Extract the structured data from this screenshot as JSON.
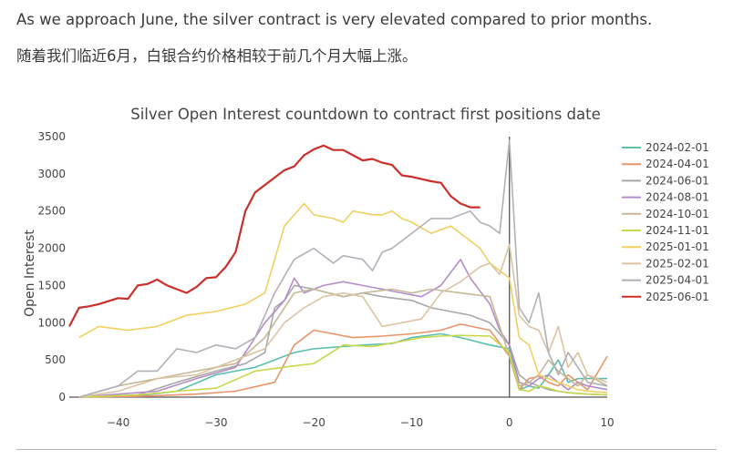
{
  "paragraphs": {
    "en": "As we approach June, the silver contract is very elevated compared to prior months.",
    "zh": "随着我们临近6月，白银合约价格相较于前几个月大幅上涨。"
  },
  "chart_data": {
    "type": "line",
    "title": "Silver Open Interest countdown to contract first positions date",
    "xlabel": "",
    "ylabel": "Open Interest",
    "xlim": [
      -45,
      10
    ],
    "ylim": [
      0,
      3500
    ],
    "xticks": [
      -40,
      -30,
      -20,
      -10,
      0,
      10
    ],
    "yticks": [
      0,
      500,
      1000,
      1500,
      2000,
      2500,
      3000,
      3500
    ],
    "grid": false,
    "legend_position": "right",
    "series": [
      {
        "name": "2024-02-01",
        "color": "#5bbfb0",
        "x": [
          -44,
          -38,
          -34,
          -30,
          -26,
          -22,
          -20,
          -15,
          -12,
          -10,
          -7,
          -5,
          -2,
          0,
          1,
          2,
          3,
          4,
          5,
          6,
          7,
          8,
          10
        ],
        "y": [
          0,
          20,
          80,
          300,
          400,
          600,
          650,
          700,
          720,
          800,
          850,
          800,
          700,
          650,
          100,
          150,
          120,
          300,
          500,
          200,
          250,
          250,
          250
        ]
      },
      {
        "name": "2024-04-01",
        "color": "#e8956a",
        "x": [
          -44,
          -38,
          -32,
          -28,
          -24,
          -22,
          -20,
          -16,
          -13,
          -10,
          -7,
          -5,
          -2,
          0,
          1,
          2,
          3,
          4,
          5,
          6,
          7,
          8,
          10
        ],
        "y": [
          0,
          10,
          40,
          80,
          200,
          700,
          900,
          800,
          820,
          850,
          900,
          980,
          900,
          550,
          100,
          250,
          280,
          200,
          150,
          300,
          200,
          100,
          550
        ]
      },
      {
        "name": "2024-06-01",
        "color": "#a8a8a8",
        "x": [
          -44,
          -38,
          -34,
          -30,
          -27,
          -25,
          -24,
          -23,
          -22,
          -20,
          -17,
          -15,
          -13,
          -10,
          -8,
          -6,
          -4,
          -2,
          0,
          1,
          2,
          3,
          4,
          5,
          6,
          7,
          8,
          10
        ],
        "y": [
          0,
          30,
          200,
          350,
          450,
          600,
          1200,
          1300,
          1500,
          1450,
          1350,
          1400,
          1350,
          1300,
          1200,
          1150,
          1100,
          1000,
          700,
          300,
          200,
          150,
          100,
          80,
          60,
          50,
          40,
          30
        ]
      },
      {
        "name": "2024-08-01",
        "color": "#b48cc8",
        "x": [
          -44,
          -40,
          -36,
          -32,
          -28,
          -25,
          -23,
          -22,
          -21,
          -19,
          -17,
          -15,
          -13,
          -11,
          -9,
          -7,
          -5,
          -4,
          -2,
          -1,
          0,
          1,
          2,
          3,
          4,
          5,
          6,
          7,
          8,
          10
        ],
        "y": [
          0,
          40,
          80,
          250,
          400,
          1000,
          1300,
          1600,
          1400,
          1500,
          1550,
          1500,
          1450,
          1400,
          1350,
          1500,
          1850,
          1600,
          1250,
          900,
          700,
          200,
          150,
          250,
          300,
          200,
          100,
          200,
          150,
          100
        ]
      },
      {
        "name": "2024-10-01",
        "color": "#c4b896",
        "x": [
          -44,
          -40,
          -36,
          -32,
          -28,
          -25,
          -22,
          -20,
          -17,
          -15,
          -12,
          -10,
          -8,
          -5,
          -2,
          0,
          1,
          2,
          3,
          4,
          5,
          6,
          7,
          8,
          10
        ],
        "y": [
          0,
          150,
          250,
          350,
          450,
          800,
          1400,
          1450,
          1350,
          1400,
          1450,
          1400,
          1450,
          1400,
          1350,
          550,
          150,
          200,
          300,
          500,
          350,
          250,
          150,
          300,
          150
        ]
      },
      {
        "name": "2024-11-01",
        "color": "#c8d84a",
        "x": [
          -44,
          -38,
          -34,
          -30,
          -26,
          -22,
          -20,
          -17,
          -14,
          -11,
          -9,
          -7,
          -5,
          -2,
          0,
          1,
          2,
          3,
          4,
          5,
          6,
          7,
          8,
          10
        ],
        "y": [
          0,
          30,
          80,
          120,
          350,
          420,
          450,
          700,
          680,
          750,
          800,
          820,
          830,
          820,
          600,
          100,
          80,
          150,
          120,
          80,
          60,
          50,
          40,
          30
        ]
      },
      {
        "name": "2025-01-01",
        "color": "#f0d060",
        "x": [
          -44,
          -42,
          -39,
          -36,
          -33,
          -30,
          -27,
          -25,
          -23,
          -21,
          -20,
          -18,
          -17,
          -16,
          -14,
          -13,
          -12,
          -11,
          -10,
          -8,
          -6,
          -5,
          -4,
          -3,
          -2,
          -1,
          0,
          1,
          2,
          3,
          4,
          5,
          6,
          7,
          8,
          10
        ],
        "y": [
          800,
          950,
          900,
          950,
          1100,
          1150,
          1250,
          1400,
          2300,
          2600,
          2450,
          2400,
          2350,
          2500,
          2450,
          2450,
          2500,
          2400,
          2350,
          2200,
          2300,
          2200,
          2100,
          2000,
          1800,
          1700,
          1600,
          800,
          700,
          300,
          250,
          200,
          150,
          100,
          80,
          60
        ]
      },
      {
        "name": "2025-02-01",
        "color": "#dcc3a0",
        "x": [
          -44,
          -40,
          -36,
          -32,
          -28,
          -25,
          -23,
          -21,
          -19,
          -17,
          -15,
          -13,
          -11,
          -9,
          -7,
          -5,
          -3,
          -2,
          -1,
          0,
          1,
          2,
          3,
          4,
          5,
          6,
          7,
          8,
          10
        ],
        "y": [
          0,
          80,
          250,
          300,
          500,
          650,
          1000,
          1200,
          1350,
          1400,
          1350,
          950,
          1000,
          1050,
          1400,
          1550,
          1750,
          1800,
          1650,
          2050,
          1100,
          950,
          900,
          600,
          950,
          400,
          600,
          300,
          200
        ]
      },
      {
        "name": "2025-04-01",
        "color": "#b0b0b8",
        "x": [
          -44,
          -40,
          -38,
          -36,
          -34,
          -32,
          -30,
          -28,
          -26,
          -24,
          -22,
          -20,
          -18,
          -17,
          -15,
          -14,
          -13,
          -12,
          -10,
          -8,
          -6,
          -4,
          -3,
          -2,
          -1,
          0,
          1,
          2,
          3,
          4,
          5,
          6,
          7,
          8,
          10
        ],
        "y": [
          0,
          150,
          350,
          350,
          650,
          600,
          700,
          650,
          800,
          1400,
          1850,
          2000,
          1800,
          1900,
          1850,
          1700,
          1950,
          2000,
          2200,
          2400,
          2400,
          2500,
          2350,
          2300,
          2200,
          3450,
          1200,
          1000,
          1400,
          600,
          300,
          600,
          400,
          200,
          150
        ]
      },
      {
        "name": "2025-06-01",
        "color": "#cc2e2a",
        "x": [
          -45,
          -44,
          -43,
          -42,
          -40,
          -39,
          -38,
          -37,
          -36,
          -35,
          -34,
          -33,
          -32,
          -31,
          -30,
          -29,
          -28,
          -27,
          -26,
          -25,
          -24,
          -23,
          -22,
          -21,
          -20,
          -19,
          -18,
          -17,
          -16,
          -15,
          -14,
          -13,
          -12,
          -11,
          -10,
          -9,
          -8,
          -7,
          -6,
          -5,
          -4,
          -3
        ],
        "y": [
          950,
          1200,
          1220,
          1250,
          1330,
          1320,
          1500,
          1520,
          1580,
          1500,
          1450,
          1400,
          1480,
          1600,
          1610,
          1750,
          1950,
          2500,
          2750,
          2850,
          2950,
          3050,
          3100,
          3250,
          3330,
          3380,
          3320,
          3320,
          3250,
          3180,
          3200,
          3150,
          3120,
          2980,
          2960,
          2930,
          2900,
          2880,
          2700,
          2600,
          2550,
          2550
        ]
      }
    ]
  }
}
